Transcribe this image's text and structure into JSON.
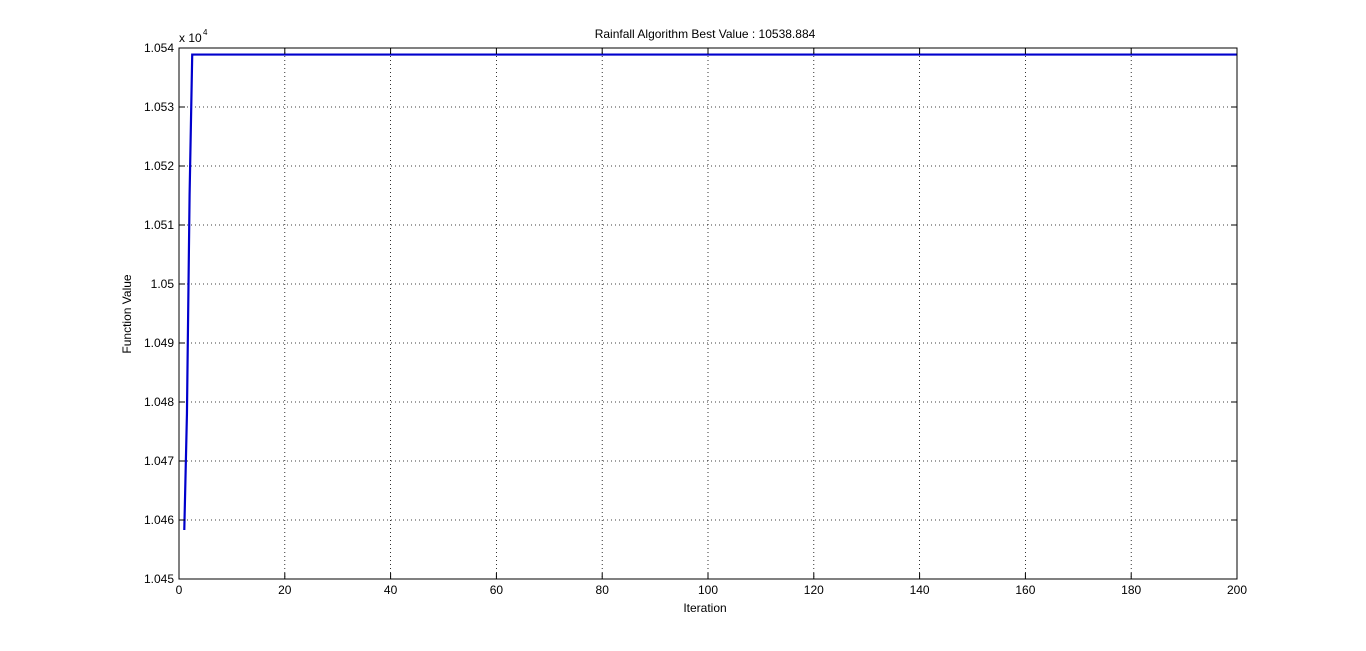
{
  "chart_data": {
    "type": "line",
    "title": "Rainfall Algorithm Best Value : 10538.884",
    "xlabel": "Iteration",
    "ylabel": "Function Value",
    "xlim": [
      0,
      200
    ],
    "ylim": [
      10450,
      10540
    ],
    "x_ticks": [
      0,
      20,
      40,
      60,
      80,
      100,
      120,
      140,
      160,
      180,
      200
    ],
    "x_tick_labels": [
      "0",
      "20",
      "40",
      "60",
      "80",
      "100",
      "120",
      "140",
      "160",
      "180",
      "200"
    ],
    "y_ticks": [
      10450,
      10460,
      10470,
      10480,
      10490,
      10500,
      10510,
      10520,
      10530,
      10540
    ],
    "y_tick_labels": [
      "1.045",
      "1.046",
      "1.047",
      "1.048",
      "1.049",
      "1.05",
      "1.051",
      "1.052",
      "1.053",
      "1.054"
    ],
    "y_exponent_base": "x 10",
    "y_exponent_power": "4",
    "grid": true,
    "series_color": "#0000cc",
    "x": [
      1,
      1.5,
      2,
      2.5,
      200
    ],
    "y": [
      10458.3,
      10478.0,
      10515.0,
      10538.884,
      10538.884
    ]
  }
}
